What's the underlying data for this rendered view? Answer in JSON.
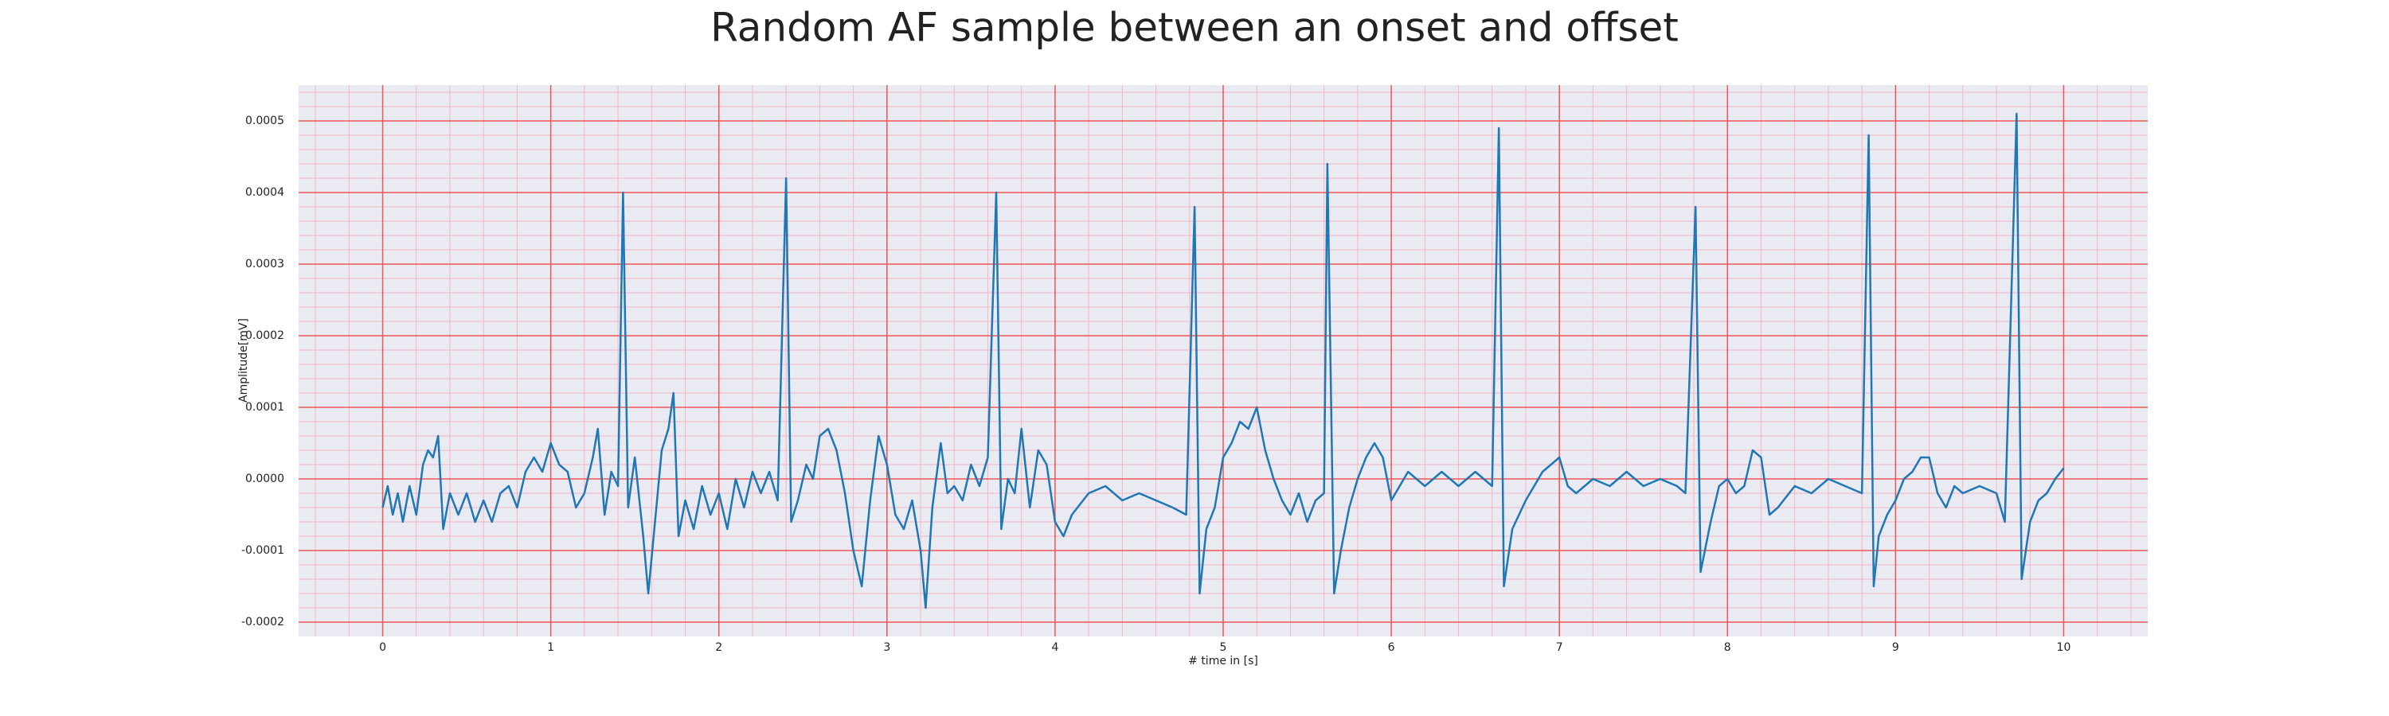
{
  "chart_data": {
    "type": "line",
    "title": "Random AF sample between an onset and offset",
    "xlabel": "# time in [s]",
    "ylabel": "Amplitude[mV]",
    "x": [
      0,
      0.03,
      0.06,
      0.09,
      0.12,
      0.16,
      0.2,
      0.24,
      0.27,
      0.3,
      0.33,
      0.36,
      0.4,
      0.45,
      0.5,
      0.55,
      0.6,
      0.65,
      0.7,
      0.75,
      0.8,
      0.85,
      0.9,
      0.95,
      1.0,
      1.05,
      1.1,
      1.15,
      1.2,
      1.25,
      1.28,
      1.32,
      1.36,
      1.4,
      1.43,
      1.46,
      1.5,
      1.55,
      1.58,
      1.62,
      1.66,
      1.7,
      1.73,
      1.76,
      1.8,
      1.85,
      1.9,
      1.95,
      2.0,
      2.05,
      2.1,
      2.15,
      2.2,
      2.25,
      2.3,
      2.35,
      2.4,
      2.43,
      2.47,
      2.52,
      2.56,
      2.6,
      2.65,
      2.7,
      2.75,
      2.8,
      2.85,
      2.9,
      2.95,
      3.0,
      3.05,
      3.1,
      3.15,
      3.2,
      3.23,
      3.27,
      3.32,
      3.36,
      3.4,
      3.45,
      3.5,
      3.55,
      3.6,
      3.65,
      3.68,
      3.72,
      3.76,
      3.8,
      3.85,
      3.9,
      3.95,
      4.0,
      4.05,
      4.1,
      4.2,
      4.3,
      4.4,
      4.5,
      4.6,
      4.7,
      4.78,
      4.83,
      4.86,
      4.9,
      4.95,
      5.0,
      5.05,
      5.1,
      5.15,
      5.2,
      5.25,
      5.3,
      5.35,
      5.4,
      5.45,
      5.5,
      5.55,
      5.6,
      5.62,
      5.66,
      5.7,
      5.75,
      5.8,
      5.85,
      5.9,
      5.95,
      6.0,
      6.05,
      6.1,
      6.2,
      6.3,
      6.4,
      6.5,
      6.6,
      6.64,
      6.67,
      6.72,
      6.8,
      6.9,
      7.0,
      7.05,
      7.1,
      7.2,
      7.3,
      7.4,
      7.5,
      7.6,
      7.7,
      7.75,
      7.81,
      7.84,
      7.9,
      7.95,
      8.0,
      8.05,
      8.1,
      8.15,
      8.2,
      8.25,
      8.3,
      8.4,
      8.5,
      8.6,
      8.7,
      8.8,
      8.84,
      8.87,
      8.9,
      8.95,
      9.0,
      9.05,
      9.1,
      9.15,
      9.2,
      9.25,
      9.3,
      9.35,
      9.4,
      9.5,
      9.6,
      9.65,
      9.72,
      9.75,
      9.8,
      9.85,
      9.9,
      9.95,
      10.0
    ],
    "series": [
      {
        "color": "#1f77b4",
        "values": [
          -4e-05,
          -1e-05,
          -5e-05,
          -2e-05,
          -6e-05,
          -1e-05,
          -5e-05,
          2e-05,
          4e-05,
          3e-05,
          6e-05,
          -7e-05,
          -2e-05,
          -5e-05,
          -2e-05,
          -6e-05,
          -3e-05,
          -6e-05,
          -2e-05,
          -1e-05,
          -4e-05,
          1e-05,
          3e-05,
          1e-05,
          5e-05,
          2e-05,
          1e-05,
          -4e-05,
          -2e-05,
          3e-05,
          7e-05,
          -5e-05,
          1e-05,
          -1e-05,
          0.0004,
          -4e-05,
          3e-05,
          -8e-05,
          -0.00016,
          -6e-05,
          4e-05,
          7e-05,
          0.00012,
          -8e-05,
          -3e-05,
          -7e-05,
          -1e-05,
          -5e-05,
          -2e-05,
          -7e-05,
          0,
          -4e-05,
          1e-05,
          -2e-05,
          1e-05,
          -3e-05,
          0.00042,
          -6e-05,
          -3e-05,
          2e-05,
          0,
          6e-05,
          7e-05,
          4e-05,
          -2e-05,
          -0.0001,
          -0.00015,
          -3e-05,
          6e-05,
          2e-05,
          -5e-05,
          -7e-05,
          -3e-05,
          -0.0001,
          -0.00018,
          -4e-05,
          5e-05,
          -2e-05,
          -1e-05,
          -3e-05,
          2e-05,
          -1e-05,
          3e-05,
          0.0004,
          -7e-05,
          0,
          -2e-05,
          7e-05,
          -4e-05,
          4e-05,
          2e-05,
          -6e-05,
          -8e-05,
          -5e-05,
          -2e-05,
          -1e-05,
          -3e-05,
          -2e-05,
          -3e-05,
          -4e-05,
          -5e-05,
          0.00038,
          -0.00016,
          -7e-05,
          -4e-05,
          3e-05,
          5e-05,
          8e-05,
          7e-05,
          0.0001,
          4e-05,
          0,
          -3e-05,
          -5e-05,
          -2e-05,
          -6e-05,
          -3e-05,
          -2e-05,
          0.00044,
          -0.00016,
          -0.0001,
          -4e-05,
          0,
          3e-05,
          5e-05,
          3e-05,
          -3e-05,
          -1e-05,
          1e-05,
          -1e-05,
          1e-05,
          -1e-05,
          1e-05,
          -1e-05,
          0.00049,
          -0.00015,
          -7e-05,
          -3e-05,
          1e-05,
          3e-05,
          -1e-05,
          -2e-05,
          0,
          -1e-05,
          1e-05,
          -1e-05,
          0,
          -1e-05,
          -2e-05,
          0.00038,
          -0.00013,
          -6e-05,
          -1e-05,
          0,
          -2e-05,
          -1e-05,
          4e-05,
          3e-05,
          -5e-05,
          -4e-05,
          -1e-05,
          -2e-05,
          0,
          -1e-05,
          -2e-05,
          0.00048,
          -0.00015,
          -8e-05,
          -5e-05,
          -3e-05,
          0,
          1e-05,
          3e-05,
          3e-05,
          -2e-05,
          -4e-05,
          -1e-05,
          -2e-05,
          -1e-05,
          -2e-05,
          -6e-05,
          0.00051,
          -0.00014,
          -6e-05,
          -3e-05,
          -2e-05,
          0,
          1.5e-05
        ]
      }
    ],
    "xlim": [
      -0.5,
      10.5
    ],
    "xticks": [
      0,
      1,
      2,
      3,
      4,
      5,
      6,
      7,
      8,
      9,
      10
    ],
    "ylim": [
      -0.00022,
      0.00055
    ],
    "yticks": [
      {
        "value": -0.0002,
        "label": "-0.0002"
      },
      {
        "value": -0.0001,
        "label": "-0.0001"
      },
      {
        "value": 0,
        "label": "0.0000"
      },
      {
        "value": 0.0001,
        "label": "0.0001"
      },
      {
        "value": 0.0002,
        "label": "0.0002"
      },
      {
        "value": 0.0003,
        "label": "0.0003"
      },
      {
        "value": 0.0004,
        "label": "0.0004"
      },
      {
        "value": 0.0005,
        "label": "0.0005"
      }
    ],
    "grid": true
  }
}
